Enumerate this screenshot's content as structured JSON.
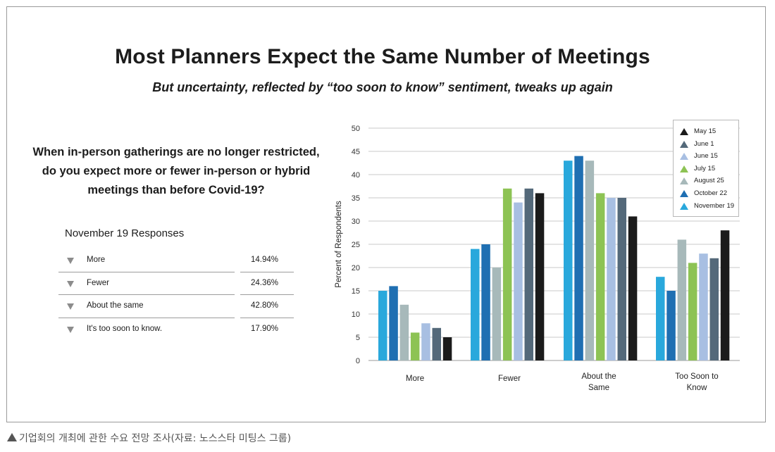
{
  "header": {
    "title": "Most Planners Expect the Same Number of Meetings",
    "subtitle": "But uncertainty, reflected by “too soon to know” sentiment, tweaks up again"
  },
  "question": {
    "line1": "When in-person gatherings are no longer restricted,",
    "line2": "do you expect more or fewer in-person or hybrid",
    "line3": "meetings than before Covid-19?"
  },
  "responses": {
    "title": "November 19 Responses",
    "rows": [
      {
        "label": "More",
        "value": "14.94%"
      },
      {
        "label": "Fewer",
        "value": "24.36%"
      },
      {
        "label": "About the same",
        "value": "42.80%"
      },
      {
        "label": "It's too soon to know.",
        "value": "17.90%"
      }
    ]
  },
  "footer": {
    "caption": "기업회의 개최에 관한 수요 전망 조사(자료: 노스스타 미팅스 그룹)"
  },
  "chart_data": {
    "type": "bar",
    "title": "",
    "xlabel": "",
    "ylabel": "Percent of Respondents",
    "ylim": [
      0,
      50
    ],
    "yticks": [
      0,
      5,
      10,
      15,
      20,
      25,
      30,
      35,
      40,
      45,
      50
    ],
    "grid": true,
    "legend_position": "top-right",
    "categories": [
      [
        "More"
      ],
      [
        "Fewer"
      ],
      [
        "About the",
        "Same"
      ],
      [
        "Too Soon to",
        "Know"
      ]
    ],
    "series": [
      {
        "name": "November 19",
        "color": "#29a8dc",
        "values": [
          15,
          24,
          43,
          18
        ]
      },
      {
        "name": "October 22",
        "color": "#1f6fb2",
        "values": [
          16,
          25,
          44,
          15
        ]
      },
      {
        "name": "August 25",
        "color": "#a7b9ba",
        "values": [
          12,
          20,
          43,
          26
        ]
      },
      {
        "name": "July 15",
        "color": "#8dc354",
        "values": [
          6,
          37,
          36,
          21
        ]
      },
      {
        "name": "June 15",
        "color": "#a8bfe2",
        "values": [
          8,
          34,
          35,
          23
        ]
      },
      {
        "name": "June 1",
        "color": "#54697a",
        "values": [
          7,
          37,
          35,
          22
        ]
      },
      {
        "name": "May 15",
        "color": "#1b1b1b",
        "values": [
          5,
          36,
          31,
          28
        ]
      }
    ],
    "legend_order": [
      "May 15",
      "June 1",
      "June 15",
      "July 15",
      "August 25",
      "October 22",
      "November 19"
    ]
  }
}
